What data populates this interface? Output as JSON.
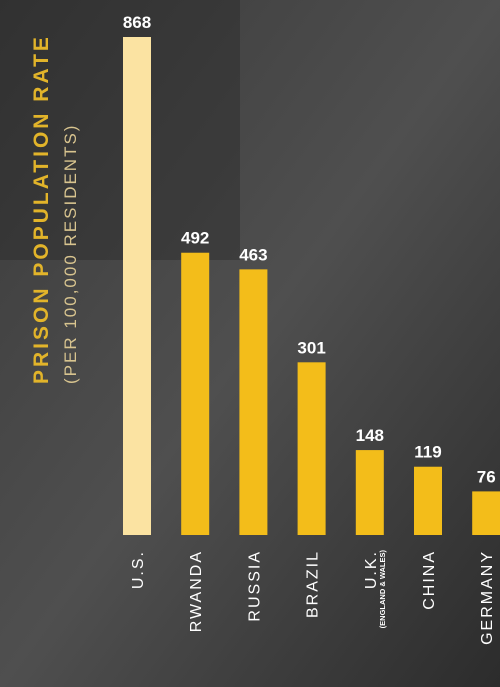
{
  "chart_data": {
    "type": "bar",
    "title": "PRISON POPULATION RATE",
    "subtitle": "(PER 100,000 RESIDENTS)",
    "categories": [
      "U.S.",
      "RWANDA",
      "RUSSIA",
      "BRAZIL",
      "U.K.",
      "CHINA",
      "GERMANY"
    ],
    "values": [
      868,
      492,
      463,
      301,
      148,
      119,
      76
    ],
    "colors": [
      "#fbe3a2",
      "#f3bd1a",
      "#f3bd1a",
      "#f3bd1a",
      "#f3bd1a",
      "#f3bd1a",
      "#f3bd1a"
    ],
    "annotations": [
      {
        "category": "U.K.",
        "text": "(ENGLAND & WALES)"
      }
    ],
    "ylim": [
      0,
      868
    ]
  }
}
